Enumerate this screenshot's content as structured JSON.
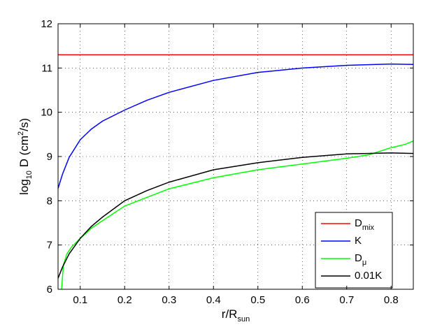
{
  "chart_data": {
    "type": "line",
    "x_label": "r/R",
    "x_label_subscript": "sun",
    "y_label_parts": [
      "log",
      "10",
      " D (cm",
      "2",
      "/s)"
    ],
    "xlim": [
      0.05,
      0.85
    ],
    "xticks": [
      0.1,
      0.2,
      0.3,
      0.4,
      0.5,
      0.6,
      0.7,
      0.8
    ],
    "ylim": [
      6,
      12
    ],
    "yticks": [
      6,
      7,
      8,
      9,
      10,
      11,
      12
    ],
    "grid": true,
    "legend": "lower right",
    "series": [
      {
        "name": "D",
        "name_subscript": "mix",
        "color": "#ff0000",
        "x": [
          0.05,
          0.85
        ],
        "values": [
          11.3,
          11.3
        ]
      },
      {
        "name": "K",
        "color": "#0000ff",
        "x": [
          0.05,
          0.06,
          0.075,
          0.1,
          0.125,
          0.15,
          0.2,
          0.25,
          0.3,
          0.4,
          0.5,
          0.6,
          0.7,
          0.8,
          0.85
        ],
        "values": [
          8.28,
          8.6,
          8.98,
          9.38,
          9.62,
          9.8,
          10.05,
          10.27,
          10.45,
          10.72,
          10.9,
          11.0,
          11.06,
          11.09,
          11.08
        ]
      },
      {
        "name": "D",
        "name_subscript": "μ",
        "color": "#00ff00",
        "x": [
          0.058,
          0.062,
          0.07,
          0.08,
          0.1,
          0.125,
          0.15,
          0.2,
          0.3,
          0.4,
          0.5,
          0.6,
          0.7,
          0.75,
          0.8,
          0.83,
          0.85
        ],
        "values": [
          6.0,
          6.55,
          6.8,
          6.95,
          7.15,
          7.38,
          7.55,
          7.88,
          8.27,
          8.52,
          8.7,
          8.83,
          8.96,
          9.04,
          9.2,
          9.27,
          9.35
        ]
      },
      {
        "name": "0.01K",
        "color": "#000000",
        "x": [
          0.05,
          0.06,
          0.075,
          0.1,
          0.125,
          0.15,
          0.2,
          0.25,
          0.3,
          0.4,
          0.5,
          0.6,
          0.7,
          0.8,
          0.85
        ],
        "values": [
          6.25,
          6.5,
          6.8,
          7.15,
          7.42,
          7.63,
          8.0,
          8.23,
          8.42,
          8.7,
          8.86,
          8.98,
          9.06,
          9.08,
          9.07
        ]
      }
    ]
  }
}
